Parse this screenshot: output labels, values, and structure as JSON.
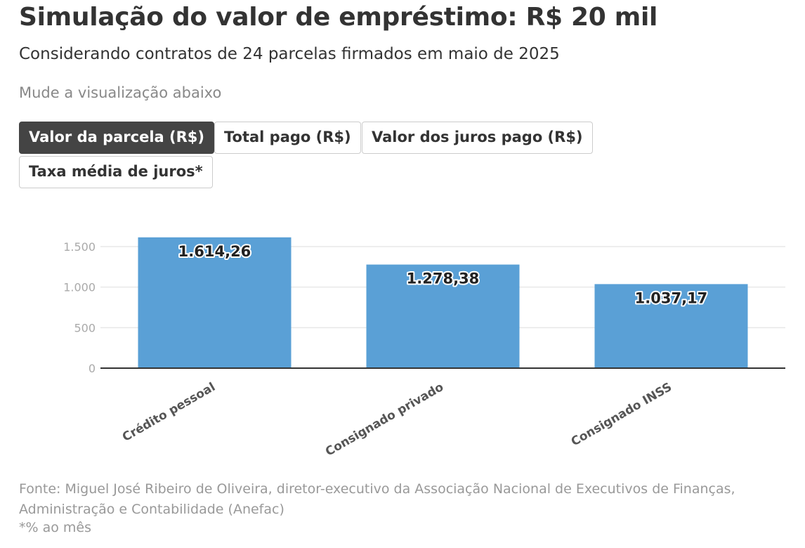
{
  "header": {
    "title": "Simulação do valor de empréstimo: R$ 20 mil",
    "subtitle": "Considerando contratos de 24 parcelas firmados em maio de 2025",
    "hint": "Mude a visualização abaixo"
  },
  "tabs": [
    {
      "label": "Valor da parcela (R$)",
      "active": true
    },
    {
      "label": "Total pago (R$)",
      "active": false
    },
    {
      "label": "Valor dos juros pago (R$)",
      "active": false
    },
    {
      "label": "Taxa média de juros*",
      "active": false
    }
  ],
  "chart_data": {
    "type": "bar",
    "title": "Valor da parcela (R$)",
    "categories": [
      "Crédito pessoal",
      "Consignado privado",
      "Consignado INSS"
    ],
    "values": [
      1614.26,
      1278.38,
      1037.17
    ],
    "value_labels": [
      "1.614,26",
      "1.278,38",
      "1.037,17"
    ],
    "ylim": [
      0,
      1500
    ],
    "yticks": [
      0,
      500,
      1000,
      1500
    ],
    "ytick_labels": [
      "0",
      "500",
      "1.000",
      "1.500"
    ],
    "xlabel": "",
    "ylabel": "",
    "grid": true,
    "bar_color": "#5aa0d6"
  },
  "footer": {
    "source": "Fonte: Miguel José Ribeiro de Oliveira, diretor-executivo da Associação Nacional de Executivos de Finanças, Administração e Contabilidade (Anefac)",
    "note": "*% ao mês"
  }
}
